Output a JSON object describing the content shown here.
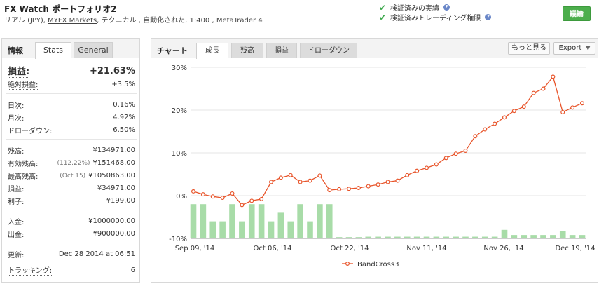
{
  "header": {
    "title": "FX Watch ポートフォリオ2",
    "sub_prefix": "リアル (JPY), ",
    "broker": "MYFX Markets",
    "sub_suffix": ", テクニカル , 自動化された, 1:400 , MetaTrader 4",
    "verified_1": "検証済みの実績",
    "verified_2": "検証済みトレーディング権限",
    "help_glyph": "?",
    "discuss_button": "議論"
  },
  "left": {
    "tab_info": "情報",
    "tab_stats": "Stats",
    "tab_general": "General",
    "gain_label": "損益:",
    "gain_value": "+21.63%",
    "abs_gain_label": "絶対損益:",
    "abs_gain_value": "+3.5%",
    "daily_label": "日次:",
    "daily_value": "0.16%",
    "monthly_label": "月次:",
    "monthly_value": "4.92%",
    "drawdown_label": "ドローダウン:",
    "drawdown_value": "6.50%",
    "balance_label": "残高:",
    "balance_value": "¥134971.00",
    "equity_label": "有効残高:",
    "equity_pct": "(112.22%)",
    "equity_value": "¥151468.00",
    "highest_label": "最高残高:",
    "highest_date": "(Oct 15)",
    "highest_value": "¥1050863.00",
    "profit_label": "損益:",
    "profit_value": "¥34971.00",
    "interest_label": "利子:",
    "interest_value": "¥199.00",
    "deposits_label": "入金:",
    "deposits_value": "¥1000000.00",
    "withdrawals_label": "出金:",
    "withdrawals_value": "¥900000.00",
    "updated_label": "更新:",
    "updated_value": "Dec 28 2014 at 06:51",
    "tracking_label": "トラッキング:",
    "tracking_value": "6"
  },
  "right": {
    "title": "チャート",
    "tabs": [
      "成長",
      "残高",
      "損益",
      "ドローダウン"
    ],
    "more_button": "もっと見る",
    "export_button": "Export",
    "export_arrow": "▼"
  },
  "colors": {
    "line": "#e8542a",
    "bars": "#a8dca8",
    "green": "#2a9d3a",
    "accent_button": "#4cae4c"
  },
  "chart_data": {
    "type": "line",
    "legend": [
      "BandCross3"
    ],
    "legend_placement": "bottom-center",
    "y_ticks": [
      "30%",
      "20%",
      "10%",
      "0%",
      "-10%"
    ],
    "y_range": [
      -10,
      30
    ],
    "x_ticks": [
      "Sep 09, '14",
      "Oct 06, '14",
      "Oct 22, '14",
      "Nov 11, '14",
      "Nov 26, '14",
      "Dec 19, '14"
    ],
    "series": [
      {
        "name": "BandCross3",
        "values": [
          1.0,
          0.3,
          -0.2,
          -0.5,
          0.5,
          -2.2,
          -1.2,
          -0.8,
          3.2,
          4.2,
          4.8,
          3.2,
          3.5,
          4.7,
          1.3,
          1.5,
          1.6,
          1.8,
          2.2,
          2.6,
          3.2,
          3.5,
          4.8,
          5.8,
          6.5,
          7.3,
          8.8,
          9.8,
          10.5,
          13.9,
          15.5,
          16.8,
          18.3,
          19.8,
          20.8,
          24.0,
          25.0,
          27.8,
          19.5,
          20.6,
          21.6
        ]
      }
    ],
    "bars": [
      -2,
      -2,
      -6,
      -6,
      -2,
      -6,
      -2,
      -2,
      -6,
      -4,
      -6,
      -2,
      -6,
      -2,
      -2,
      -9.6,
      -9.6,
      -9.6,
      -9.6,
      -9.6,
      -9.6,
      -9.6,
      -9.6,
      -9.6,
      -9.6,
      -9.6,
      -9.6,
      -9.6,
      -9.6,
      -9.6,
      -9.6,
      -9.6,
      -9.6,
      -9.6,
      -9.6,
      -9.6,
      -9.6,
      -9.6,
      -9.6,
      -9.6,
      -9.6
    ],
    "bar_heights_visible": [
      -2,
      -2,
      -6,
      -6,
      -2,
      -6,
      -2,
      -2,
      -6,
      -4,
      -6,
      -2,
      -6,
      -2,
      -2,
      -9.7,
      -9.7,
      -9.7,
      -9.6,
      -9.6,
      -9.6,
      -9.6,
      -9.6,
      -9.6,
      -9.6,
      -9.6,
      -9.6,
      -9.6,
      -9.6,
      -9.6,
      -9.6,
      -9.6,
      -8.0,
      -9.2,
      -9.2,
      -9.2,
      -9.2,
      -9.2,
      -8.3,
      -9.2,
      -9.2
    ]
  }
}
